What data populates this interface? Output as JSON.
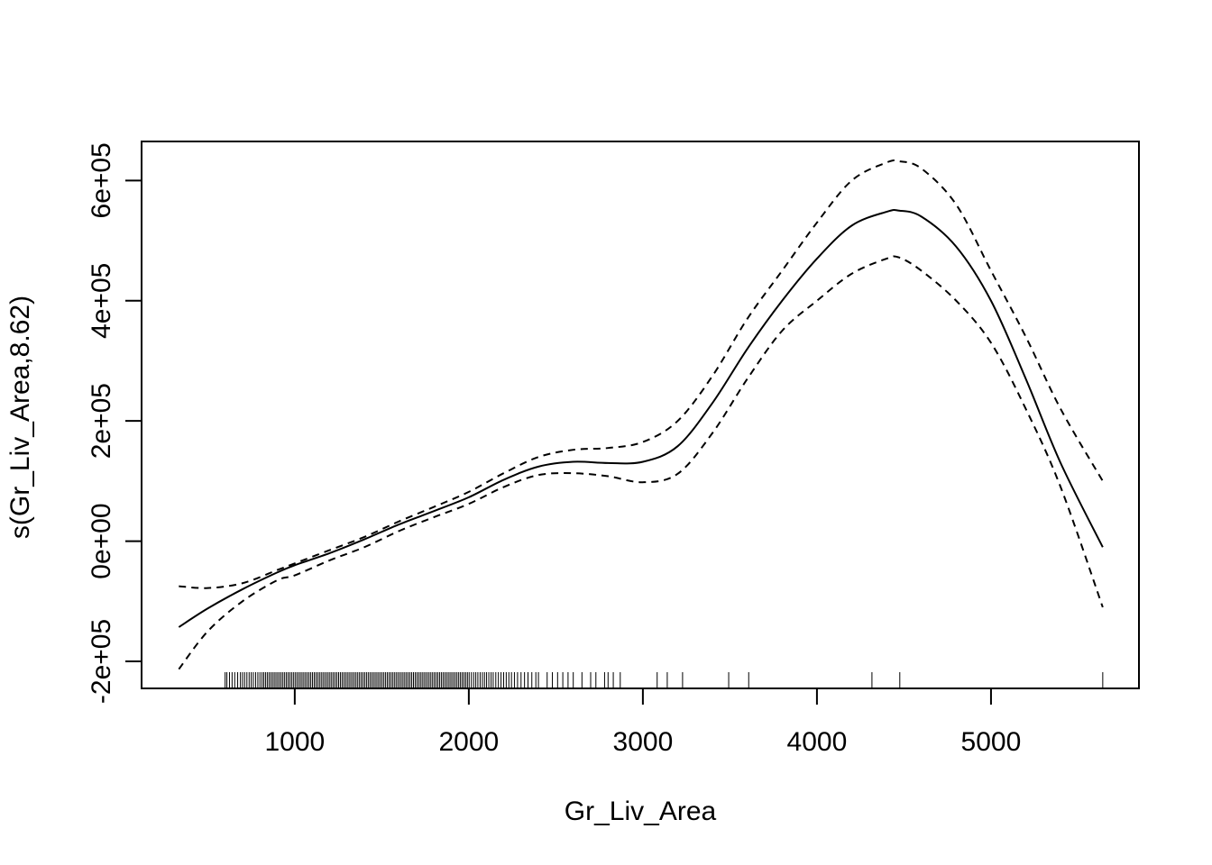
{
  "chart_data": {
    "type": "line",
    "title": "",
    "xlabel": "Gr_Liv_Area",
    "ylabel": "s(Gr_Liv_Area,8.62)",
    "xlim": [
      120,
      5850
    ],
    "ylim": [
      -245000,
      665000
    ],
    "x_ticks": [
      1000,
      2000,
      3000,
      4000,
      5000
    ],
    "x_tick_labels": [
      "1000",
      "2000",
      "3000",
      "4000",
      "5000"
    ],
    "y_ticks": [
      -200000,
      0,
      200000,
      400000,
      600000
    ],
    "y_tick_labels": [
      "-2e+05",
      "0e+00",
      "2e+05",
      "4e+05",
      "6e+05"
    ],
    "grid": false,
    "series": [
      {
        "style": "solid",
        "x": [
          334,
          500,
          700,
          900,
          1000,
          1200,
          1400,
          1600,
          1800,
          2000,
          2200,
          2400,
          2600,
          2800,
          3000,
          3200,
          3400,
          3600,
          3800,
          4000,
          4200,
          4400,
          4472,
          4600,
          4800,
          5000,
          5200,
          5400,
          5642
        ],
        "y": [
          -143000,
          -112000,
          -80000,
          -52000,
          -40000,
          -20000,
          3000,
          28000,
          50000,
          73000,
          102000,
          124000,
          132000,
          130000,
          132000,
          158000,
          230000,
          320000,
          400000,
          470000,
          525000,
          548000,
          550000,
          540000,
          490000,
          400000,
          270000,
          130000,
          -10000
        ]
      },
      {
        "style": "dashed",
        "x": [
          334,
          500,
          700,
          900,
          1000,
          1200,
          1400,
          1600,
          1800,
          2000,
          2200,
          2400,
          2600,
          2800,
          3000,
          3200,
          3400,
          3600,
          3800,
          4000,
          4200,
          4400,
          4472,
          4600,
          4800,
          5000,
          5200,
          5400,
          5642
        ],
        "y": [
          -75000,
          -78000,
          -70000,
          -48000,
          -37000,
          -15000,
          7000,
          33000,
          57000,
          82000,
          113000,
          140000,
          152000,
          155000,
          165000,
          200000,
          275000,
          370000,
          450000,
          530000,
          600000,
          630000,
          632000,
          620000,
          560000,
          450000,
          340000,
          220000,
          100000
        ]
      },
      {
        "style": "dashed",
        "x": [
          334,
          500,
          700,
          900,
          1000,
          1200,
          1400,
          1600,
          1800,
          2000,
          2200,
          2400,
          2600,
          2800,
          3000,
          3200,
          3400,
          3600,
          3800,
          4000,
          4200,
          4400,
          4472,
          4600,
          4800,
          5000,
          5200,
          5400,
          5642
        ],
        "y": [
          -213000,
          -150000,
          -100000,
          -65000,
          -57000,
          -32000,
          -10000,
          17000,
          40000,
          62000,
          90000,
          110000,
          113000,
          108000,
          98000,
          112000,
          180000,
          270000,
          350000,
          400000,
          445000,
          470000,
          472000,
          450000,
          400000,
          330000,
          220000,
          90000,
          -110000
        ]
      }
    ],
    "rug_x": [
      600,
      610,
      625,
      640,
      655,
      672,
      688,
      700,
      712,
      725,
      738,
      750,
      762,
      775,
      788,
      800,
      812,
      822,
      832,
      842,
      852,
      862,
      872,
      882,
      892,
      902,
      912,
      922,
      932,
      942,
      952,
      962,
      972,
      982,
      992,
      1002,
      1012,
      1022,
      1032,
      1042,
      1052,
      1062,
      1072,
      1082,
      1092,
      1102,
      1112,
      1122,
      1132,
      1142,
      1152,
      1162,
      1172,
      1182,
      1192,
      1202,
      1212,
      1222,
      1232,
      1242,
      1252,
      1262,
      1272,
      1282,
      1292,
      1302,
      1312,
      1322,
      1332,
      1342,
      1352,
      1362,
      1372,
      1382,
      1392,
      1402,
      1412,
      1422,
      1432,
      1442,
      1452,
      1462,
      1472,
      1482,
      1492,
      1502,
      1512,
      1522,
      1532,
      1542,
      1552,
      1562,
      1572,
      1582,
      1592,
      1602,
      1612,
      1622,
      1632,
      1642,
      1652,
      1662,
      1672,
      1682,
      1692,
      1702,
      1712,
      1722,
      1732,
      1742,
      1752,
      1762,
      1772,
      1782,
      1792,
      1802,
      1812,
      1822,
      1832,
      1842,
      1852,
      1862,
      1872,
      1882,
      1892,
      1902,
      1912,
      1922,
      1932,
      1942,
      1952,
      1962,
      1972,
      1982,
      1992,
      2002,
      2015,
      2028,
      2040,
      2052,
      2065,
      2078,
      2090,
      2102,
      2115,
      2128,
      2140,
      2155,
      2170,
      2185,
      2200,
      2215,
      2230,
      2245,
      2262,
      2280,
      2300,
      2320,
      2340,
      2362,
      2385,
      2400,
      2450,
      2480,
      2510,
      2540,
      2570,
      2600,
      2650,
      2700,
      2730,
      2780,
      2800,
      2830,
      2870,
      3082,
      3140,
      3228,
      3493,
      3608,
      4316,
      4476,
      5642
    ]
  }
}
